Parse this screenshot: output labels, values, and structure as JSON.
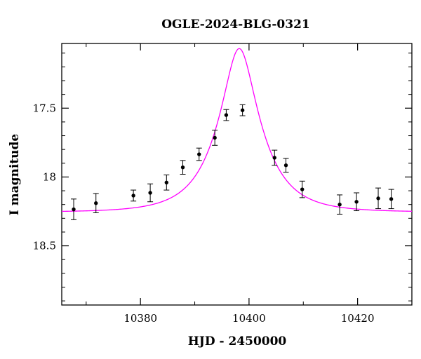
{
  "chart_data": {
    "type": "scatter",
    "title": "OGLE-2024-BLG-0321",
    "xlabel": "HJD - 2450000",
    "ylabel": "I magnitude",
    "xlim": [
      10365.5,
      10430
    ],
    "ylim": [
      18.93,
      17.03
    ],
    "y_inverted": true,
    "x_major_ticks": [
      10380,
      10400,
      10420
    ],
    "x_minor_ticks": [
      10370,
      10390,
      10410,
      10430
    ],
    "y_major_ticks": [
      17.5,
      18,
      18.5
    ],
    "y_minor_ticks": [
      17.1,
      17.2,
      17.3,
      17.4,
      17.6,
      17.7,
      17.8,
      17.9,
      18.1,
      18.2,
      18.3,
      18.4,
      18.6,
      18.7,
      18.8,
      18.9
    ],
    "x_tick_labels": [
      "10380",
      "10400",
      "10420"
    ],
    "y_tick_labels": [
      "17.5",
      "18",
      "18.5"
    ],
    "grid": false,
    "points": [
      {
        "x": 10367.7,
        "y": 18.235,
        "err": 0.075
      },
      {
        "x": 10371.8,
        "y": 18.19,
        "err": 0.07
      },
      {
        "x": 10378.7,
        "y": 18.135,
        "err": 0.04
      },
      {
        "x": 10381.8,
        "y": 18.115,
        "err": 0.065
      },
      {
        "x": 10384.8,
        "y": 18.04,
        "err": 0.055
      },
      {
        "x": 10387.8,
        "y": 17.93,
        "err": 0.05
      },
      {
        "x": 10390.8,
        "y": 17.835,
        "err": 0.045
      },
      {
        "x": 10393.7,
        "y": 17.715,
        "err": 0.055
      },
      {
        "x": 10395.8,
        "y": 17.55,
        "err": 0.04
      },
      {
        "x": 10398.8,
        "y": 17.515,
        "err": 0.04
      },
      {
        "x": 10404.7,
        "y": 17.86,
        "err": 0.055
      },
      {
        "x": 10406.8,
        "y": 17.915,
        "err": 0.05
      },
      {
        "x": 10409.8,
        "y": 18.09,
        "err": 0.06
      },
      {
        "x": 10416.7,
        "y": 18.2,
        "err": 0.07
      },
      {
        "x": 10419.8,
        "y": 18.18,
        "err": 0.065
      },
      {
        "x": 10423.8,
        "y": 18.155,
        "err": 0.075
      },
      {
        "x": 10426.2,
        "y": 18.16,
        "err": 0.07
      }
    ],
    "model": {
      "name": "",
      "color": "#ff00ff",
      "t0": 10398.2,
      "tE": 7.7,
      "u0": 0.35,
      "baseline_mag": 18.255
    },
    "colors": {
      "points": "#000000",
      "axes": "#000000"
    }
  }
}
